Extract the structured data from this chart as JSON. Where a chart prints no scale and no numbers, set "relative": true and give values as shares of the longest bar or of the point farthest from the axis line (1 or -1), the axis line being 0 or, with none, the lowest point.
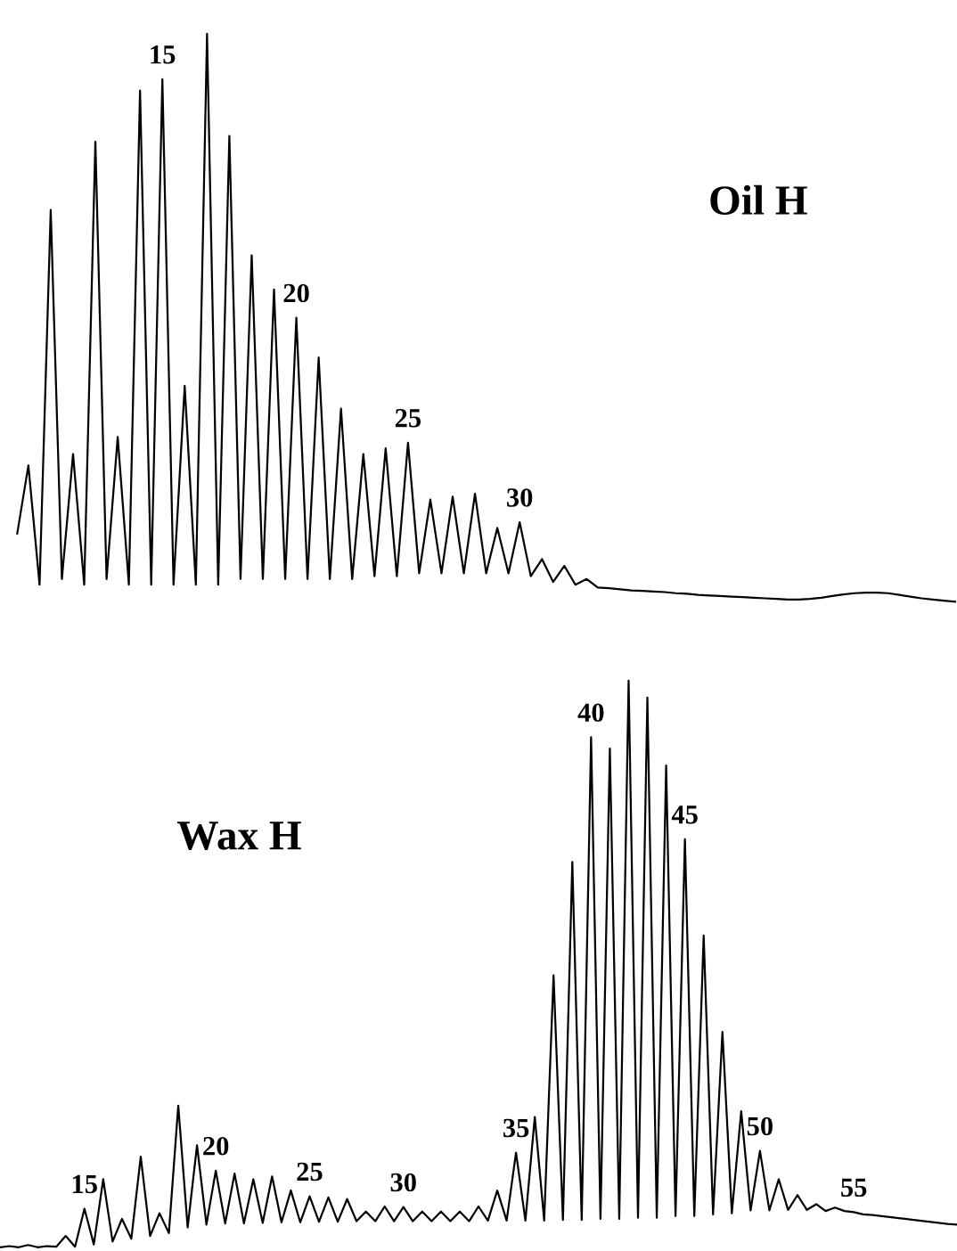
{
  "chart_data": [
    {
      "type": "line",
      "title": "Oil H",
      "relative": true,
      "categories": [
        null,
        null,
        null,
        null,
        null,
        null,
        null,
        null,
        null,
        null,
        null,
        null,
        null,
        null,
        null,
        null,
        null,
        null,
        null,
        null,
        null,
        null,
        null,
        null,
        null,
        null,
        null,
        null,
        null,
        null,
        null,
        null,
        null,
        null,
        null,
        null,
        null,
        null,
        null,
        null,
        null,
        null,
        null,
        null,
        null,
        null,
        null,
        null,
        null,
        null,
        null,
        null,
        null,
        null,
        null,
        null,
        null,
        null,
        null,
        null,
        null,
        null,
        null,
        null,
        null,
        null,
        null,
        null,
        null,
        null,
        null,
        null,
        null,
        null,
        null,
        null,
        null,
        null,
        null,
        null,
        null,
        null,
        null,
        null,
        null
      ],
      "series": [
        {
          "color": "#000000",
          "values": [
            0.12,
            0.24,
            0.03,
            0.69,
            0.04,
            0.26,
            0.03,
            0.81,
            0.04,
            0.29,
            0.03,
            0.9,
            0.03,
            0.92,
            0.03,
            0.38,
            0.03,
            1,
            0.03,
            0.82,
            0.04,
            0.61,
            0.04,
            0.55,
            0.04,
            0.5,
            0.04,
            0.43,
            0.04,
            0.34,
            0.04,
            0.26,
            0.045,
            0.27,
            0.045,
            0.28,
            0.05,
            0.18,
            0.05,
            0.185,
            0.05,
            0.19,
            0.05,
            0.13,
            0.05,
            0.14,
            0.045,
            0.075,
            0.035,
            0.063,
            0.03,
            0.04,
            0.025,
            0.024,
            0.022,
            0.02,
            0.019,
            0.018,
            0.017,
            0.015,
            0.014,
            0.012,
            0.011,
            0.01,
            0.009,
            0.008,
            0.007,
            0.006,
            0.005,
            0.004,
            0.004,
            0.005,
            0.007,
            0.01,
            0.013,
            0.015,
            0.016,
            0.016,
            0.015,
            0.012,
            0.009,
            0.006,
            0.004,
            0.002,
            0
          ]
        }
      ],
      "annotations": [
        {
          "text": "15",
          "y": 0.92
        },
        {
          "text": "20",
          "y": 0.5
        },
        {
          "text": "25",
          "y": 0.28
        },
        {
          "text": "30",
          "y": 0.14
        }
      ]
    },
    {
      "type": "line",
      "title": "Wax H",
      "relative": true,
      "categories": [
        null,
        null,
        null,
        null,
        null,
        null,
        null,
        null,
        null,
        null,
        null,
        null,
        null,
        null,
        null,
        null,
        null,
        null,
        null,
        null,
        null,
        null,
        null,
        null,
        null,
        null,
        null,
        null,
        null,
        null,
        null,
        null,
        null,
        null,
        null,
        null,
        null,
        null,
        null,
        null,
        null,
        null,
        null,
        null,
        null,
        null,
        null,
        null,
        null,
        null,
        null,
        null,
        null,
        null,
        null,
        null,
        null,
        null,
        null,
        null,
        null,
        null,
        null,
        null,
        null,
        null,
        null,
        null,
        null,
        null,
        null,
        null,
        null,
        null,
        null,
        null,
        null,
        null,
        null,
        null,
        null,
        null,
        null,
        null,
        null,
        null,
        null,
        null,
        null,
        null,
        null,
        null,
        null,
        null,
        null,
        null,
        null,
        null,
        null,
        null,
        null,
        null,
        null
      ],
      "series": [
        {
          "color": "#000000",
          "values": [
            0,
            0.002,
            0,
            0.004,
            0,
            0.002,
            0.001,
            0.02,
            0.001,
            0.068,
            0.005,
            0.12,
            0.01,
            0.05,
            0.015,
            0.16,
            0.02,
            0.06,
            0.025,
            0.25,
            0.035,
            0.18,
            0.04,
            0.135,
            0.042,
            0.13,
            0.042,
            0.12,
            0.043,
            0.125,
            0.044,
            0.1,
            0.044,
            0.09,
            0.045,
            0.088,
            0.045,
            0.085,
            0.046,
            0.063,
            0.046,
            0.072,
            0.046,
            0.071,
            0.046,
            0.063,
            0.046,
            0.063,
            0.046,
            0.063,
            0.046,
            0.072,
            0.047,
            0.1,
            0.047,
            0.167,
            0.047,
            0.23,
            0.047,
            0.48,
            0.048,
            0.68,
            0.048,
            0.9,
            0.05,
            0.88,
            0.05,
            1,
            0.052,
            0.97,
            0.052,
            0.85,
            0.055,
            0.72,
            0.055,
            0.55,
            0.058,
            0.38,
            0.06,
            0.24,
            0.065,
            0.17,
            0.065,
            0.12,
            0.066,
            0.092,
            0.066,
            0.076,
            0.064,
            0.07,
            0.064,
            0.062,
            0.058,
            0.057,
            0.055,
            0.053,
            0.051,
            0.049,
            0.047,
            0.045,
            0.043,
            0.041,
            0.04
          ]
        }
      ],
      "annotations": [
        {
          "text": "15",
          "y": 0.068
        },
        {
          "text": "20",
          "y": 0.135
        },
        {
          "text": "25",
          "y": 0.09
        },
        {
          "text": "30",
          "y": 0.071
        },
        {
          "text": "35",
          "y": 0.167
        },
        {
          "text": "40",
          "y": 0.9
        },
        {
          "text": "45",
          "y": 0.72
        },
        {
          "text": "50",
          "y": 0.17
        },
        {
          "text": "55",
          "y": 0.062
        }
      ]
    }
  ]
}
